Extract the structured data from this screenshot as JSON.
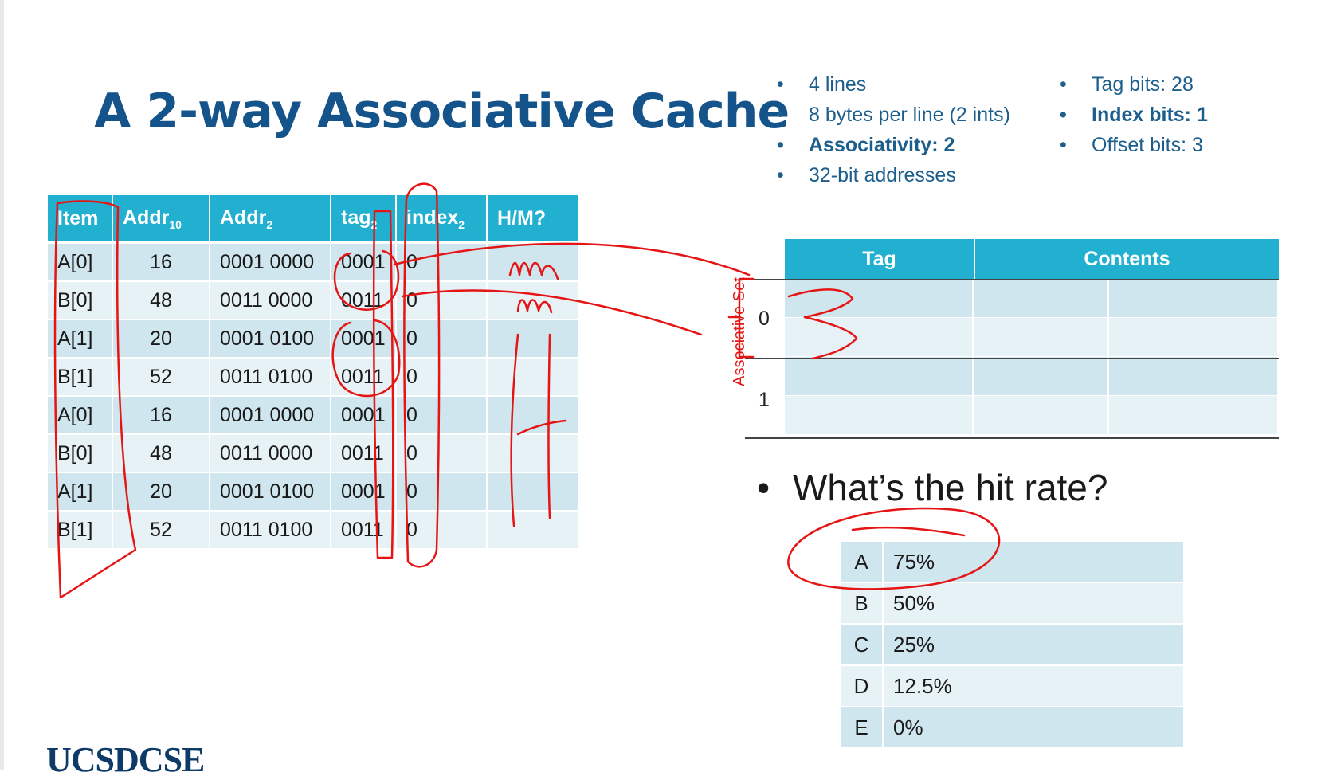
{
  "slide": {
    "title": "A 2-way Associative Cache",
    "bullets_left": [
      "4 lines",
      "8 bytes per line (2 ints)",
      "Associativity:  2",
      "32-bit addresses"
    ],
    "bullets_right": [
      "Tag bits: 28",
      "Index bits: 1",
      "Offset bits: 3"
    ]
  },
  "trace": {
    "headers": {
      "item": "Item",
      "addr10": "Addr",
      "addr10_sub": "10",
      "addr2": "Addr",
      "addr2_sub": "2",
      "tag": "tag",
      "tag_sub": "2",
      "index": "index",
      "index_sub": "2",
      "hm": "H/M?"
    },
    "rows": [
      {
        "item": "A[0]",
        "addr10": "16",
        "addr2": "0001 0000",
        "tag": "0001",
        "index": "0"
      },
      {
        "item": "B[0]",
        "addr10": "48",
        "addr2": "0011 0000",
        "tag": "0011",
        "index": "0"
      },
      {
        "item": "A[1]",
        "addr10": "20",
        "addr2": "0001 0100",
        "tag": "0001",
        "index": "0"
      },
      {
        "item": "B[1]",
        "addr10": "52",
        "addr2": "0011 0100",
        "tag": "0011",
        "index": "0"
      },
      {
        "item": "A[0]",
        "addr10": "16",
        "addr2": "0001 0000",
        "tag": "0001",
        "index": "0"
      },
      {
        "item": "B[0]",
        "addr10": "48",
        "addr2": "0011 0000",
        "tag": "0011",
        "index": "0"
      },
      {
        "item": "A[1]",
        "addr10": "20",
        "addr2": "0001 0100",
        "tag": "0001",
        "index": "0"
      },
      {
        "item": "B[1]",
        "addr10": "52",
        "addr2": "0011 0100",
        "tag": "0011",
        "index": "0"
      }
    ]
  },
  "cache": {
    "tag_header": "Tag",
    "contents_header": "Contents",
    "set_labels": [
      "0",
      "1"
    ],
    "annotation": "Associative Set"
  },
  "question": {
    "text": "What’s the hit rate?",
    "options": [
      {
        "letter": "A",
        "value": "75%"
      },
      {
        "letter": "B",
        "value": "50%"
      },
      {
        "letter": "C",
        "value": "25%"
      },
      {
        "letter": "D",
        "value": "12.5%"
      },
      {
        "letter": "E",
        "value": "0%"
      }
    ]
  },
  "logo": {
    "part1": "UCSD",
    "part2": "CSE"
  },
  "colors": {
    "title": "#15548b",
    "header": "#21b0cf",
    "ink": "#e51515"
  }
}
